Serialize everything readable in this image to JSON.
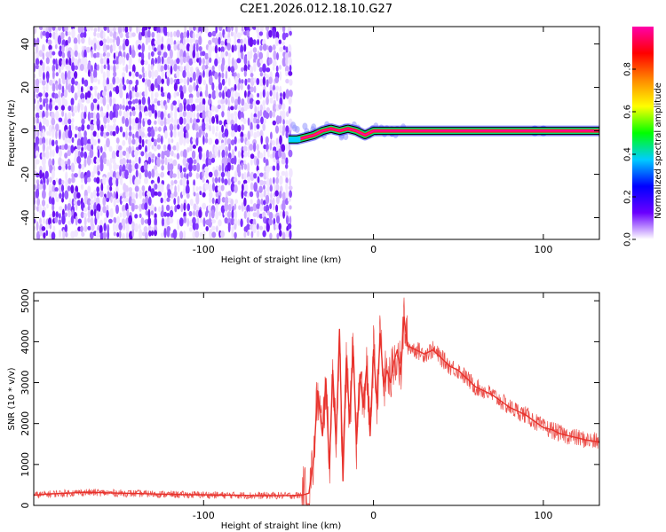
{
  "figure": {
    "title": "C2E1.2026.012.18.10.G27"
  },
  "chart_data": [
    {
      "type": "heatmap",
      "name": "spectrogram",
      "xlabel": "Height of straight line (km)",
      "ylabel": "Frequency (Hz)",
      "xlim": [
        -200,
        133
      ],
      "ylim": [
        -50,
        48
      ],
      "xticks": [
        -100,
        0,
        100
      ],
      "xtick_labels": [
        "-100",
        "0",
        "100"
      ],
      "yticks": [
        -40,
        -20,
        0,
        20,
        40
      ],
      "ytick_labels": [
        "-40",
        "-20",
        "0",
        "20",
        "40"
      ],
      "noise_region_x": [
        -200,
        -50
      ],
      "signal_track": {
        "x": [
          -50,
          -45,
          -40,
          -35,
          -30,
          -25,
          -20,
          -15,
          -10,
          -5,
          0,
          5,
          10,
          20,
          40,
          60,
          80,
          100,
          133
        ],
        "y": [
          -4,
          -4,
          -3,
          -2,
          0,
          1,
          0,
          1,
          0,
          -2,
          0,
          0,
          0,
          0,
          0,
          0,
          0,
          0,
          0
        ]
      },
      "colorbar": {
        "label": "Normalized spectral amplitude",
        "range": [
          0,
          1
        ],
        "ticks": [
          0.0,
          0.2,
          0.4,
          0.6,
          0.8
        ],
        "tick_labels": [
          "0.0",
          "0.2",
          "0.4",
          "0.6",
          "0.8"
        ],
        "colors": [
          "#ffffff",
          "#6a00ff",
          "#0000ff",
          "#00ccff",
          "#00ff00",
          "#ffff00",
          "#ff8800",
          "#ff0000",
          "#ff00aa"
        ]
      }
    },
    {
      "type": "line",
      "name": "snr",
      "xlabel": "Height of straight line (km)",
      "ylabel": "SNR (10 * v/v)",
      "xlim": [
        -200,
        133
      ],
      "ylim": [
        0,
        5200
      ],
      "xticks": [
        -100,
        0,
        100
      ],
      "xtick_labels": [
        "-100",
        "0",
        "100"
      ],
      "yticks": [
        0,
        1000,
        2000,
        3000,
        4000,
        5000
      ],
      "ytick_labels": [
        "0",
        "1000",
        "2000",
        "3000",
        "4000",
        "5000"
      ],
      "color": "#e8302a",
      "series": [
        {
          "name": "SNR",
          "x": [
            -200,
            -190,
            -180,
            -170,
            -160,
            -150,
            -140,
            -130,
            -120,
            -110,
            -100,
            -90,
            -80,
            -70,
            -60,
            -50,
            -42,
            -38,
            -35,
            -33,
            -30,
            -28,
            -26,
            -24,
            -22,
            -20,
            -18,
            -16,
            -14,
            -12,
            -10,
            -8,
            -6,
            -4,
            -2,
            0,
            2,
            4,
            6,
            8,
            10,
            12,
            14,
            16,
            18,
            20,
            25,
            30,
            35,
            40,
            45,
            50,
            55,
            60,
            65,
            70,
            75,
            80,
            85,
            90,
            95,
            100,
            105,
            110,
            115,
            120,
            125,
            133
          ],
          "y": [
            250,
            280,
            300,
            320,
            310,
            300,
            290,
            280,
            270,
            260,
            260,
            250,
            250,
            240,
            240,
            240,
            250,
            300,
            1200,
            2800,
            1700,
            3100,
            900,
            3300,
            1500,
            4300,
            600,
            3600,
            2000,
            3900,
            1500,
            3200,
            2400,
            3400,
            1700,
            3800,
            2500,
            4200,
            2900,
            3300,
            3000,
            3500,
            3800,
            3200,
            4600,
            3900,
            3800,
            3700,
            3800,
            3600,
            3400,
            3300,
            3100,
            2900,
            2800,
            2700,
            2550,
            2400,
            2300,
            2200,
            2050,
            1900,
            1850,
            1750,
            1700,
            1650,
            1600,
            1550
          ]
        }
      ]
    }
  ]
}
